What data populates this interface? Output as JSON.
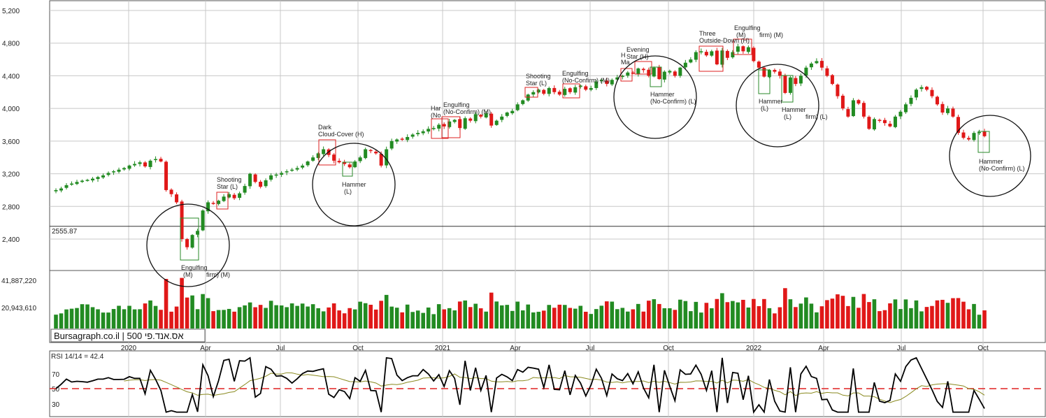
{
  "chart_data": {
    "type": "candlestick",
    "watermark": "Bursagraph.co.il | 500 אס.אנד.פי",
    "price_panel": {
      "y_ticks": [
        5200,
        4800,
        4400,
        4000,
        3600,
        3200,
        2800,
        2400
      ],
      "y_tick_labels": [
        "5,200",
        "4,800",
        "4,400",
        "4,000",
        "3,600",
        "3,200",
        "2,800",
        "2,400"
      ],
      "ylim": [
        2100,
        5230
      ],
      "reference_line": {
        "value": 2555.87,
        "label": "2555.87"
      }
    },
    "volume_panel": {
      "y_tick_labels": [
        "41,887,220",
        "20,943,610"
      ],
      "y_ticks": [
        41887220,
        20943610
      ]
    },
    "rsi_panel": {
      "label": "RSI 14/14 = 42.4",
      "y_ticks": [
        70,
        50,
        30
      ],
      "y_tick_labels": [
        "70",
        "50",
        "30"
      ],
      "reference_level": 50
    },
    "x_tick_labels": [
      "2020",
      "Apr",
      "Jul",
      "Oct",
      "2021",
      "Apr",
      "Jul",
      "Oct",
      "2022",
      "Apr",
      "Jul",
      "Oct"
    ],
    "weekly_close": [
      3000,
      3020,
      3060,
      3080,
      3100,
      3115,
      3125,
      3140,
      3160,
      3180,
      3210,
      3230,
      3250,
      3270,
      3300,
      3320,
      3340,
      3290,
      3360,
      3380,
      3350,
      3000,
      2950,
      2850,
      2400,
      2300,
      2450,
      2500,
      2750,
      2850,
      2830,
      2870,
      2920,
      2950,
      2900,
      2960,
      3050,
      3200,
      3100,
      3040,
      3120,
      3180,
      3190,
      3210,
      3230,
      3250,
      3270,
      3300,
      3350,
      3400,
      3450,
      3500,
      3430,
      3360,
      3340,
      3320,
      3280,
      3350,
      3400,
      3500,
      3480,
      3450,
      3300,
      3500,
      3600,
      3620,
      3620,
      3650,
      3680,
      3700,
      3720,
      3750,
      3760,
      3800,
      3780,
      3840,
      3860,
      3760,
      3880,
      3850,
      3930,
      3900,
      3940,
      3790,
      3850,
      3900,
      3950,
      3970,
      4050,
      4100,
      4170,
      4200,
      4230,
      4180,
      4250,
      4200,
      4170,
      4240,
      4200,
      4260,
      4280,
      4230,
      4250,
      4330,
      4350,
      4300,
      4350,
      4380,
      4400,
      4440,
      4430,
      4490,
      4470,
      4400,
      4500,
      4360,
      4450,
      4460,
      4400,
      4500,
      4560,
      4600,
      4690,
      4700,
      4650,
      4700,
      4540,
      4710,
      4620,
      4690,
      4760,
      4700,
      4750,
      4580,
      4500,
      4390,
      4470,
      4450,
      4400,
      4190,
      4380,
      4300,
      4400,
      4500,
      4550,
      4580,
      4500,
      4400,
      4300,
      4150,
      4000,
      3900,
      4100,
      4060,
      3900,
      3750,
      3870,
      3860,
      3820,
      3780,
      3900,
      3960,
      4050,
      4130,
      4230,
      4260,
      4230,
      4150,
      4050,
      3950,
      4000,
      3900,
      3700,
      3640,
      3620,
      3700,
      3710,
      3660
    ]
  }
}
